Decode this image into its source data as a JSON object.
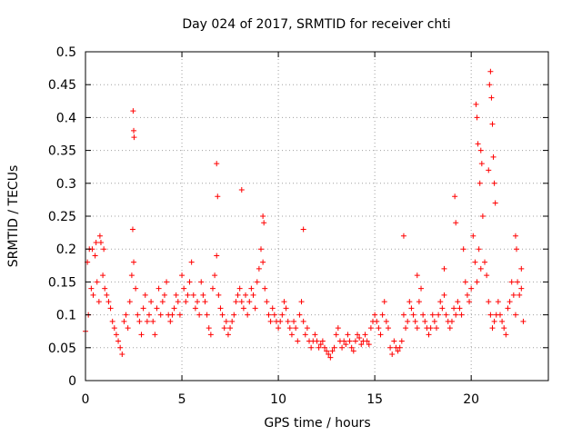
{
  "chart_data": {
    "type": "scatter",
    "title": "Day 024 of 2017, SRMTID for receiver chti",
    "xlabel": "GPS time / hours",
    "ylabel": "SRMTID / TECUs",
    "xlim": [
      0,
      24
    ],
    "ylim": [
      0,
      0.5
    ],
    "x_ticks": [
      "0",
      "5",
      "10",
      "15",
      "20"
    ],
    "y_ticks": [
      "0",
      "0.05",
      "0.1",
      "0.15",
      "0.2",
      "0.25",
      "0.3",
      "0.35",
      "0.4",
      "0.45",
      "0.5"
    ],
    "grid": true,
    "marker": "+",
    "color": "#ff0000",
    "x": [
      0.0,
      0.1,
      0.2,
      0.3,
      0.4,
      0.5,
      0.6,
      0.7,
      0.8,
      0.9,
      1.0,
      1.1,
      1.2,
      1.3,
      1.4,
      1.5,
      1.6,
      1.7,
      1.8,
      1.9,
      2.0,
      2.1,
      2.2,
      2.3,
      2.4,
      2.5,
      2.6,
      2.7,
      2.8,
      2.9,
      3.0,
      3.1,
      3.2,
      3.3,
      3.4,
      3.5,
      3.6,
      3.7,
      3.8,
      3.9,
      4.0,
      4.1,
      4.2,
      4.3,
      4.4,
      4.5,
      4.6,
      4.7,
      4.8,
      4.9,
      5.0,
      5.1,
      5.2,
      5.3,
      5.4,
      5.5,
      5.6,
      5.7,
      5.8,
      5.9,
      6.0,
      6.1,
      6.2,
      6.3,
      6.4,
      6.5,
      6.6,
      6.7,
      6.8,
      6.9,
      7.0,
      7.1,
      7.2,
      7.3,
      7.4,
      7.5,
      7.6,
      7.7,
      7.8,
      7.9,
      8.0,
      8.1,
      8.2,
      8.3,
      8.4,
      8.5,
      8.6,
      8.7,
      8.8,
      8.9,
      9.0,
      9.1,
      9.2,
      9.3,
      9.4,
      9.5,
      9.6,
      9.7,
      9.8,
      9.9,
      10.0,
      10.1,
      10.2,
      10.3,
      10.4,
      10.5,
      10.6,
      10.7,
      10.8,
      10.9,
      11.0,
      11.1,
      11.2,
      11.3,
      11.4,
      11.5,
      11.6,
      11.7,
      11.8,
      11.9,
      12.0,
      12.1,
      12.2,
      12.3,
      12.4,
      12.5,
      12.6,
      12.7,
      12.8,
      12.9,
      13.0,
      13.1,
      13.2,
      13.3,
      13.4,
      13.5,
      13.6,
      13.7,
      13.8,
      13.9,
      14.0,
      14.1,
      14.2,
      14.3,
      14.4,
      14.5,
      14.6,
      14.7,
      14.8,
      14.9,
      15.0,
      15.1,
      15.2,
      15.3,
      15.4,
      15.5,
      15.6,
      15.7,
      15.8,
      15.9,
      16.0,
      16.1,
      16.2,
      16.3,
      16.4,
      16.5,
      16.6,
      16.7,
      16.8,
      16.9,
      17.0,
      17.1,
      17.2,
      17.3,
      17.4,
      17.5,
      17.6,
      17.7,
      17.8,
      17.9,
      18.0,
      18.1,
      18.2,
      18.3,
      18.4,
      18.5,
      18.6,
      18.7,
      18.8,
      18.9,
      19.0,
      19.1,
      19.2,
      19.3,
      19.4,
      19.5,
      19.6,
      19.7,
      19.8,
      19.9,
      20.0,
      20.1,
      20.2,
      20.3,
      20.4,
      20.5,
      20.6,
      20.7,
      20.8,
      20.9,
      21.0,
      21.1,
      21.2,
      21.3,
      21.4,
      21.5,
      21.6,
      21.7,
      21.8,
      21.9,
      22.0,
      22.1,
      22.2,
      22.3,
      22.4,
      22.5,
      22.6,
      22.7,
      0.15,
      0.35,
      0.55,
      0.75,
      0.95,
      2.45,
      2.47,
      2.5,
      2.52,
      6.8,
      6.85,
      8.1,
      9.2,
      9.25,
      11.3,
      16.5,
      17.2,
      18.6,
      19.15,
      19.2,
      20.25,
      20.3,
      20.35,
      20.45,
      20.5,
      20.55,
      20.9,
      20.95,
      21.0,
      21.05,
      21.1,
      21.15,
      21.2,
      21.25,
      22.3,
      22.35,
      22.6
    ],
    "y": [
      0.075,
      0.18,
      0.2,
      0.14,
      0.13,
      0.19,
      0.15,
      0.12,
      0.21,
      0.16,
      0.14,
      0.13,
      0.12,
      0.11,
      0.09,
      0.08,
      0.07,
      0.06,
      0.05,
      0.04,
      0.09,
      0.1,
      0.08,
      0.12,
      0.16,
      0.18,
      0.14,
      0.1,
      0.09,
      0.07,
      0.11,
      0.13,
      0.09,
      0.1,
      0.12,
      0.09,
      0.07,
      0.11,
      0.14,
      0.1,
      0.12,
      0.13,
      0.15,
      0.1,
      0.09,
      0.1,
      0.11,
      0.13,
      0.12,
      0.1,
      0.16,
      0.14,
      0.12,
      0.13,
      0.15,
      0.18,
      0.13,
      0.11,
      0.12,
      0.1,
      0.15,
      0.13,
      0.12,
      0.1,
      0.08,
      0.07,
      0.14,
      0.16,
      0.19,
      0.13,
      0.11,
      0.1,
      0.08,
      0.09,
      0.07,
      0.08,
      0.09,
      0.1,
      0.12,
      0.13,
      0.14,
      0.12,
      0.11,
      0.13,
      0.1,
      0.12,
      0.14,
      0.13,
      0.11,
      0.15,
      0.17,
      0.2,
      0.18,
      0.14,
      0.12,
      0.1,
      0.09,
      0.11,
      0.1,
      0.09,
      0.08,
      0.09,
      0.1,
      0.12,
      0.11,
      0.09,
      0.08,
      0.07,
      0.09,
      0.08,
      0.06,
      0.1,
      0.12,
      0.09,
      0.07,
      0.08,
      0.06,
      0.05,
      0.06,
      0.07,
      0.06,
      0.05,
      0.055,
      0.06,
      0.05,
      0.045,
      0.04,
      0.035,
      0.045,
      0.05,
      0.07,
      0.08,
      0.06,
      0.05,
      0.06,
      0.055,
      0.07,
      0.06,
      0.05,
      0.045,
      0.06,
      0.07,
      0.065,
      0.055,
      0.06,
      0.07,
      0.06,
      0.055,
      0.08,
      0.09,
      0.1,
      0.09,
      0.08,
      0.07,
      0.1,
      0.12,
      0.09,
      0.08,
      0.05,
      0.04,
      0.06,
      0.05,
      0.045,
      0.05,
      0.06,
      0.1,
      0.08,
      0.09,
      0.12,
      0.11,
      0.1,
      0.09,
      0.08,
      0.12,
      0.14,
      0.1,
      0.09,
      0.08,
      0.07,
      0.08,
      0.1,
      0.09,
      0.08,
      0.1,
      0.12,
      0.11,
      0.13,
      0.1,
      0.09,
      0.08,
      0.09,
      0.11,
      0.1,
      0.12,
      0.11,
      0.1,
      0.2,
      0.15,
      0.13,
      0.12,
      0.14,
      0.22,
      0.18,
      0.15,
      0.2,
      0.17,
      0.25,
      0.18,
      0.16,
      0.12,
      0.1,
      0.08,
      0.09,
      0.1,
      0.12,
      0.1,
      0.09,
      0.08,
      0.07,
      0.11,
      0.12,
      0.15,
      0.13,
      0.1,
      0.15,
      0.13,
      0.14,
      0.09,
      0.1,
      0.2,
      0.21,
      0.22,
      0.2,
      0.23,
      0.41,
      0.38,
      0.37,
      0.33,
      0.28,
      0.29,
      0.25,
      0.24,
      0.23,
      0.22,
      0.16,
      0.17,
      0.28,
      0.24,
      0.42,
      0.4,
      0.36,
      0.3,
      0.35,
      0.33,
      0.32,
      0.45,
      0.47,
      0.43,
      0.39,
      0.34,
      0.3,
      0.27,
      0.22,
      0.2,
      0.17
    ]
  }
}
